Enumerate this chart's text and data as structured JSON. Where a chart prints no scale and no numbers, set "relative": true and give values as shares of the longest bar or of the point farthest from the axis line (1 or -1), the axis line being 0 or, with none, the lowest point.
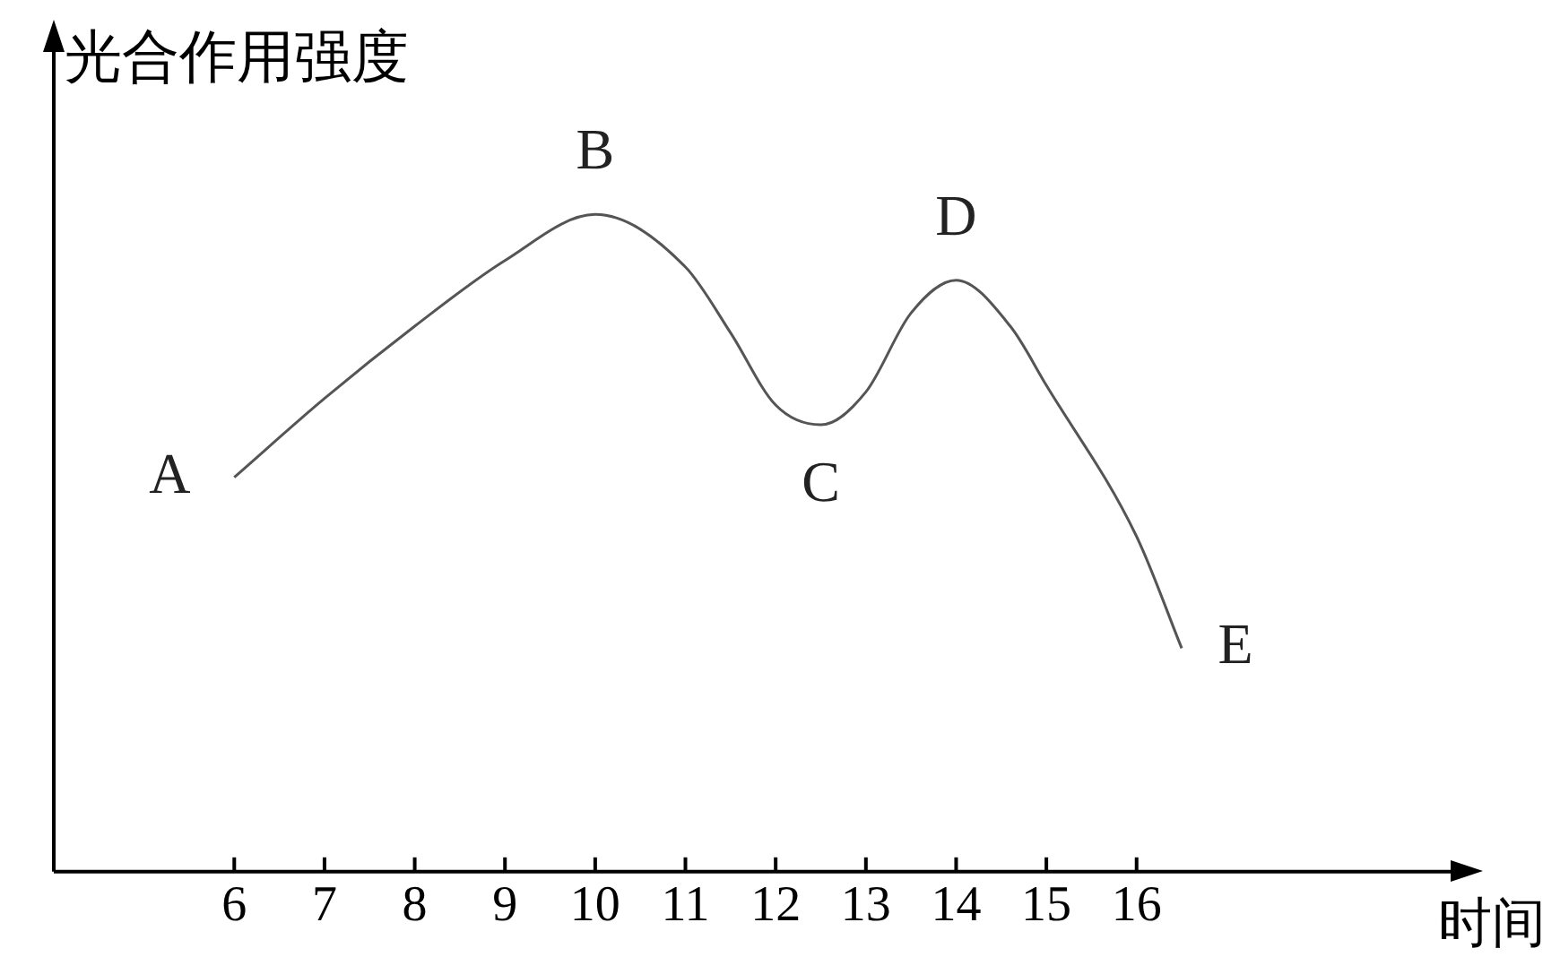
{
  "chart_data": {
    "type": "line",
    "relative": true,
    "ylabel": "光合作用强度",
    "xlabel": "时间",
    "xlim": [
      4,
      19.5
    ],
    "xticks": [
      6,
      7,
      8,
      9,
      10,
      11,
      12,
      13,
      14,
      15,
      16
    ],
    "x": [
      6,
      7,
      8,
      9,
      10,
      11,
      11.5,
      12,
      12.5,
      13,
      13.5,
      14,
      14.6,
      15,
      16,
      16.5
    ],
    "series": [
      {
        "color": "#555555",
        "values": [
          0.6,
          0.72,
          0.83,
          0.93,
          1,
          0.92,
          0.82,
          0.71,
          0.68,
          0.73,
          0.85,
          0.9,
          0.83,
          0.74,
          0.51,
          0.34
        ]
      }
    ],
    "annotations": [
      {
        "text": "A",
        "x": 6,
        "y": 0.6
      },
      {
        "text": "B",
        "x": 10,
        "y": 1
      },
      {
        "text": "C",
        "x": 12.5,
        "y": 0.68
      },
      {
        "text": "D",
        "x": 14,
        "y": 0.9
      },
      {
        "text": "E",
        "x": 16.5,
        "y": 0.34
      }
    ],
    "grid": false,
    "legend": false,
    "marker": "none",
    "line_style": "solid"
  }
}
